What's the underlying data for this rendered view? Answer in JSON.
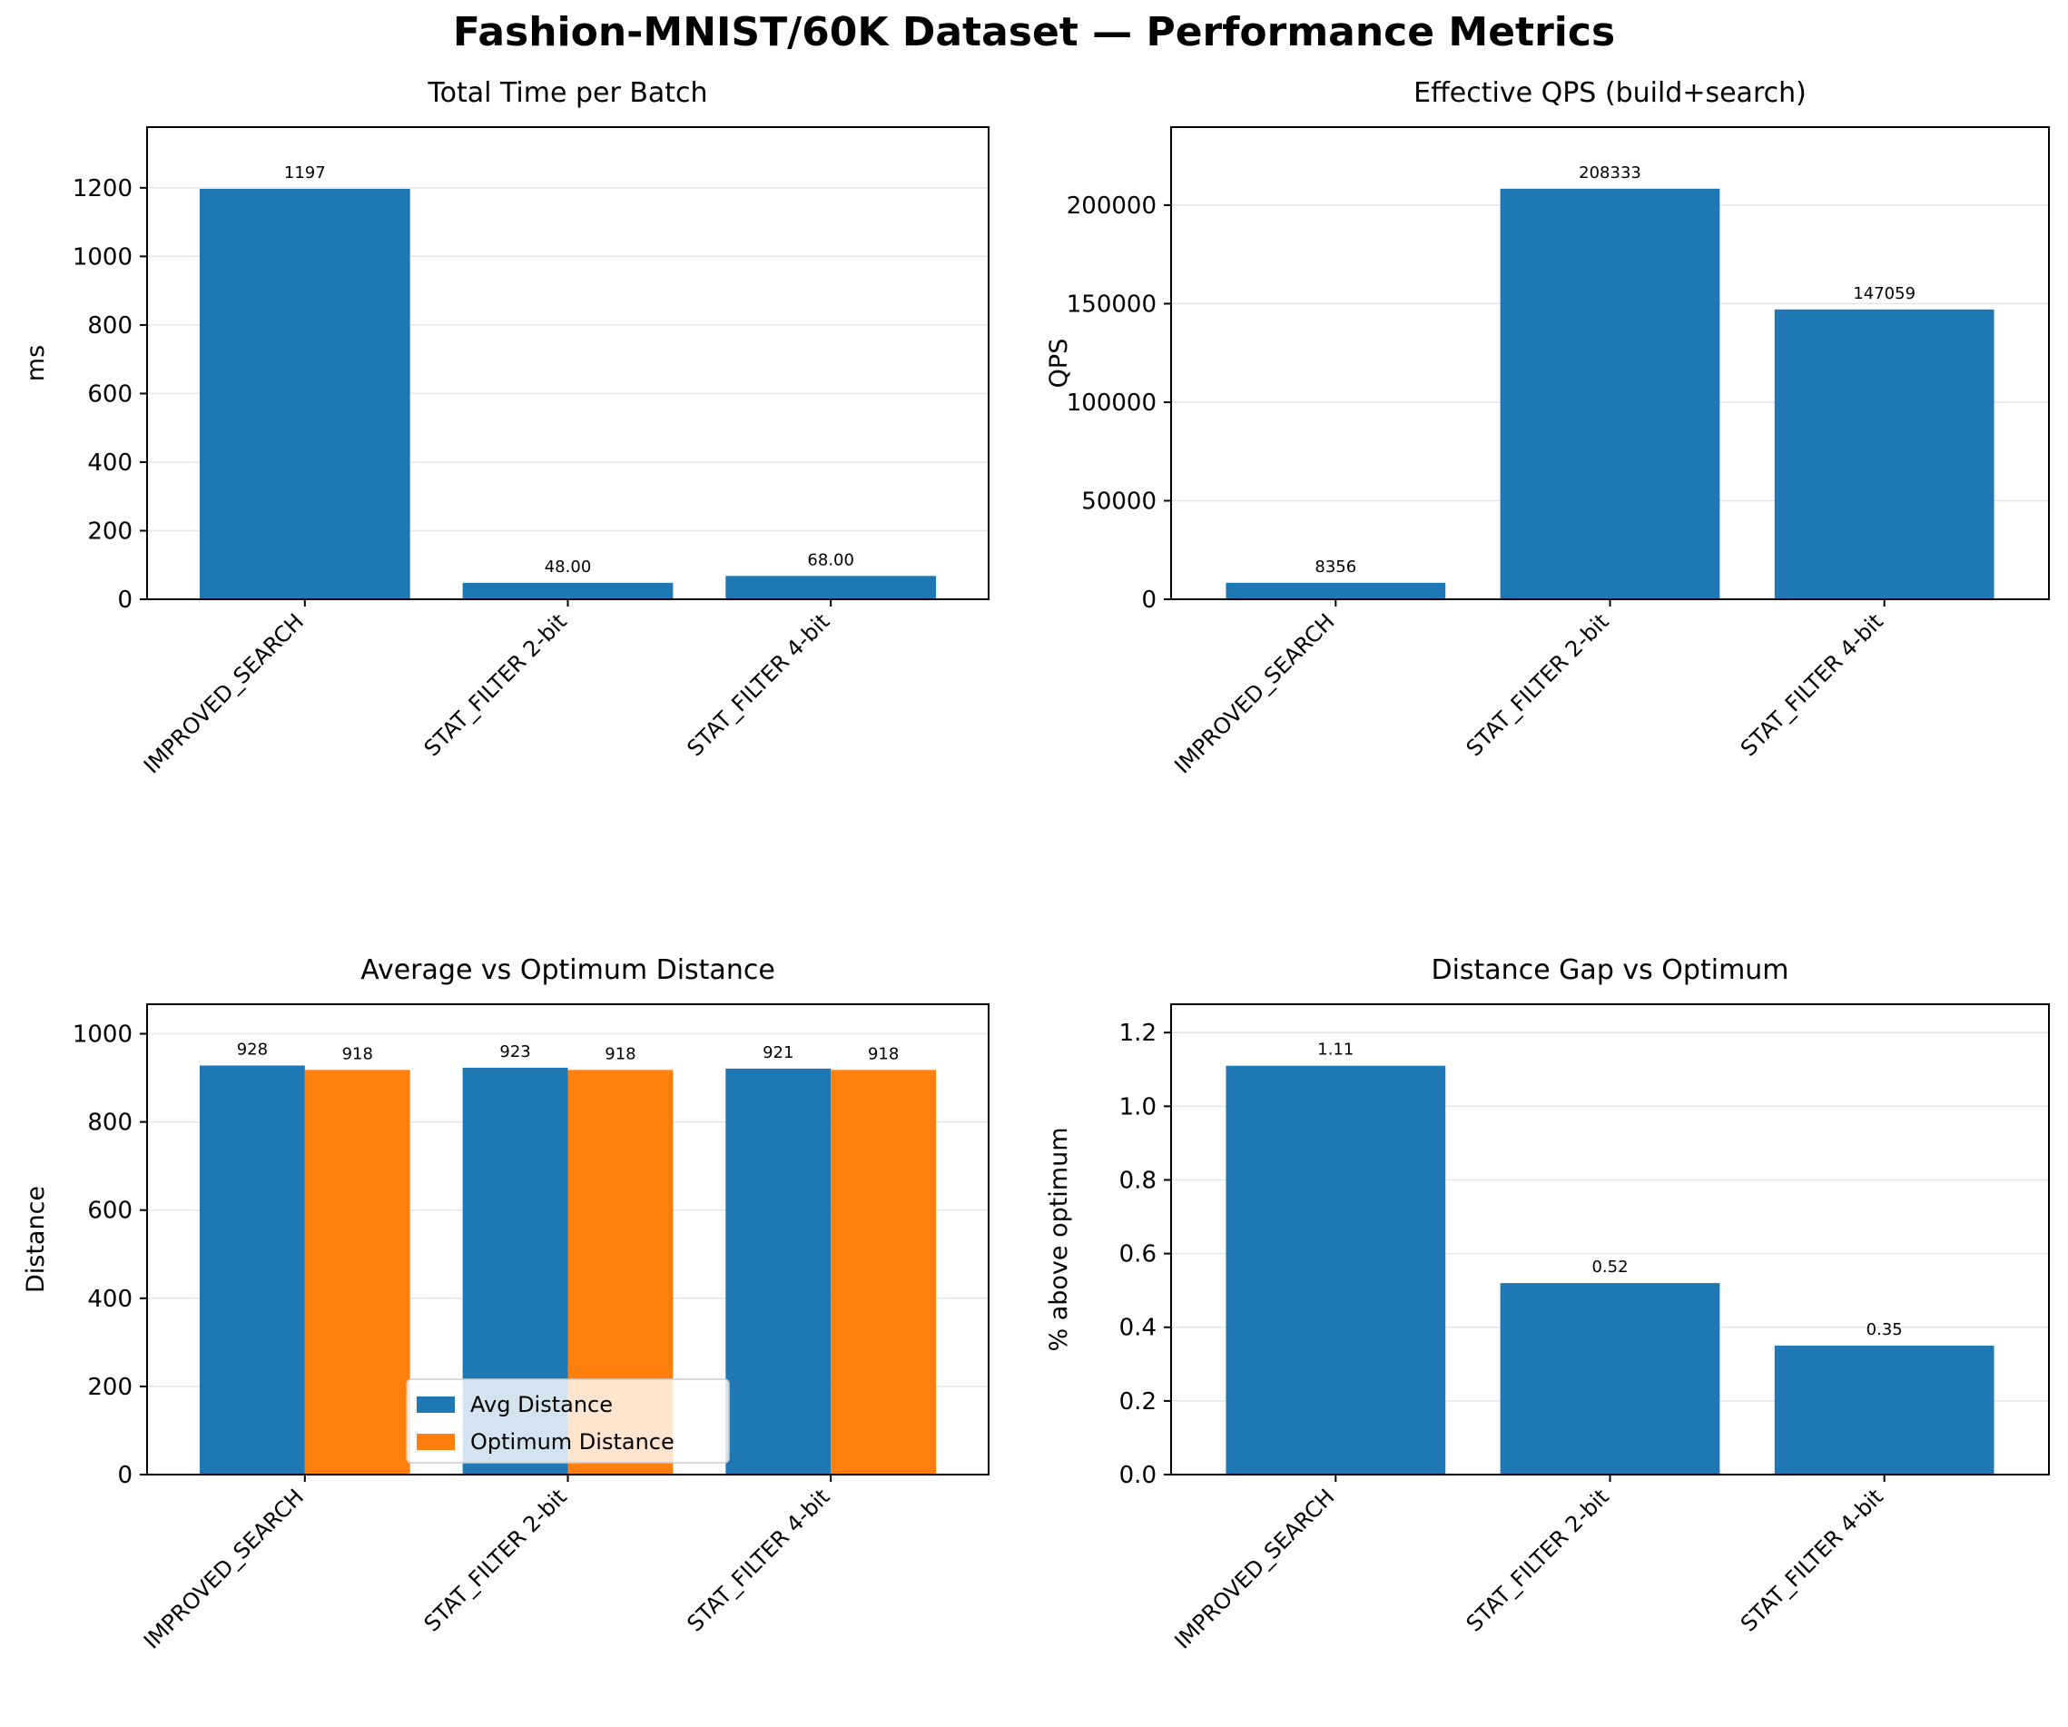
{
  "title": "Fashion-MNIST/60K Dataset — Performance Metrics",
  "colors": {
    "blue": "#1f77b4",
    "orange": "#ff7f0e",
    "grid": "#e6e6e6"
  },
  "chart_data": [
    {
      "id": "total-time",
      "type": "bar",
      "title": "Total Time per Batch",
      "ylabel": "ms",
      "ylim": [
        0,
        1377
      ],
      "yticks": [
        0,
        200,
        400,
        600,
        800,
        1000,
        1200
      ],
      "categories": [
        "IMPROVED_SEARCH",
        "STAT_FILTER 2-bit",
        "STAT_FILTER 4-bit"
      ],
      "series": [
        {
          "values": [
            1197,
            48,
            68
          ],
          "labels": [
            "1197",
            "48.00",
            "68.00"
          ],
          "color": "#1f77b4"
        }
      ],
      "grid": "y"
    },
    {
      "id": "effective-qps",
      "type": "bar",
      "title": "Effective QPS (build+search)",
      "ylabel": "QPS",
      "ylim": [
        0,
        239583
      ],
      "yticks": [
        0,
        50000,
        100000,
        150000,
        200000
      ],
      "categories": [
        "IMPROVED_SEARCH",
        "STAT_FILTER 2-bit",
        "STAT_FILTER 4-bit"
      ],
      "series": [
        {
          "values": [
            8356,
            208333,
            147059
          ],
          "labels": [
            "8356",
            "208333",
            "147059"
          ],
          "color": "#1f77b4"
        }
      ],
      "grid": "y"
    },
    {
      "id": "avg-vs-optimum",
      "type": "bar",
      "title": "Average vs Optimum Distance",
      "ylabel": "Distance",
      "ylim": [
        0,
        1067
      ],
      "yticks": [
        0,
        200,
        400,
        600,
        800,
        1000
      ],
      "categories": [
        "IMPROVED_SEARCH",
        "STAT_FILTER 2-bit",
        "STAT_FILTER 4-bit"
      ],
      "series": [
        {
          "name": "Avg Distance",
          "values": [
            928,
            923,
            921
          ],
          "labels": [
            "928",
            "923",
            "921"
          ],
          "color": "#1f77b4"
        },
        {
          "name": "Optimum Distance",
          "values": [
            918,
            918,
            918
          ],
          "labels": [
            "918",
            "918",
            "918"
          ],
          "color": "#ff7f0e"
        }
      ],
      "legend": "lower center",
      "grid": "y"
    },
    {
      "id": "distance-gap",
      "type": "bar",
      "title": "Distance Gap vs Optimum",
      "ylabel": "% above optimum",
      "ylim": [
        0,
        1.277
      ],
      "yticks": [
        0.0,
        0.2,
        0.4,
        0.6,
        0.8,
        1.0,
        1.2
      ],
      "ytick_labels": [
        "0.0",
        "0.2",
        "0.4",
        "0.6",
        "0.8",
        "1.0",
        "1.2"
      ],
      "categories": [
        "IMPROVED_SEARCH",
        "STAT_FILTER 2-bit",
        "STAT_FILTER 4-bit"
      ],
      "series": [
        {
          "values": [
            1.11,
            0.52,
            0.35
          ],
          "labels": [
            "1.11",
            "0.52",
            "0.35"
          ],
          "color": "#1f77b4"
        }
      ],
      "grid": "y"
    }
  ]
}
